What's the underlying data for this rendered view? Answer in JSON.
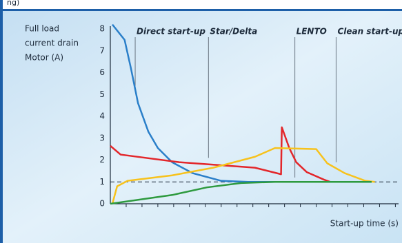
{
  "chart_data": {
    "type": "line",
    "title": "ng)",
    "y_label_lines": [
      "Full load",
      "current drain",
      "Motor (A)"
    ],
    "x_label": "Start-up time (s)",
    "xlim": [
      0,
      18.2
    ],
    "ylim": [
      0,
      8
    ],
    "yticks": [
      0,
      1,
      2,
      3,
      4,
      5,
      6,
      7,
      8
    ],
    "xticks": [
      1,
      2,
      3,
      4,
      5,
      6,
      7,
      8,
      9,
      10,
      11,
      12,
      13,
      14,
      15,
      16,
      17,
      18
    ],
    "reference_line": 1,
    "annotations": [
      {
        "text": "Direct start-up",
        "x": 1.57,
        "y_end": 5.4
      },
      {
        "text": "Star/Delta",
        "x": 6.2,
        "y_end": 2.1
      },
      {
        "text": "LENTO",
        "x": 11.65,
        "y_end": 1.2
      },
      {
        "text": "Clean start-up",
        "x": 14.26,
        "y_end": 1.9
      }
    ],
    "series": [
      {
        "color": "#2a7fc9",
        "x": [
          0.13,
          0.9,
          1.3,
          1.75,
          2.4,
          3.0,
          3.9,
          5.2,
          7.0,
          8.7,
          12
        ],
        "values": [
          8.2,
          7.5,
          6.2,
          4.6,
          3.3,
          2.55,
          1.9,
          1.4,
          1.05,
          1.0,
          1.0
        ]
      },
      {
        "color": "#e3262a",
        "x": [
          0,
          0.65,
          4.35,
          9.13,
          10.78,
          10.83,
          11.3,
          11.74,
          12.4,
          13.5,
          13.9
        ],
        "values": [
          2.65,
          2.25,
          1.9,
          1.65,
          1.35,
          3.5,
          2.55,
          1.9,
          1.45,
          1.1,
          1.0
        ]
      },
      {
        "color": "#f7c21c",
        "x": [
          0.13,
          0.43,
          1.09,
          3.9,
          6.5,
          9.13,
          10.4,
          13.0,
          13.7,
          14.8,
          16.1,
          16.7
        ],
        "values": [
          0,
          0.8,
          1.05,
          1.3,
          1.65,
          2.15,
          2.55,
          2.5,
          1.85,
          1.4,
          1.05,
          1.0
        ]
      },
      {
        "color": "#2e9a3f",
        "x": [
          0,
          3.9,
          6.1,
          8.26,
          10.4,
          16.5
        ],
        "values": [
          0,
          0.4,
          0.75,
          0.95,
          1.0,
          1.0
        ]
      }
    ]
  }
}
